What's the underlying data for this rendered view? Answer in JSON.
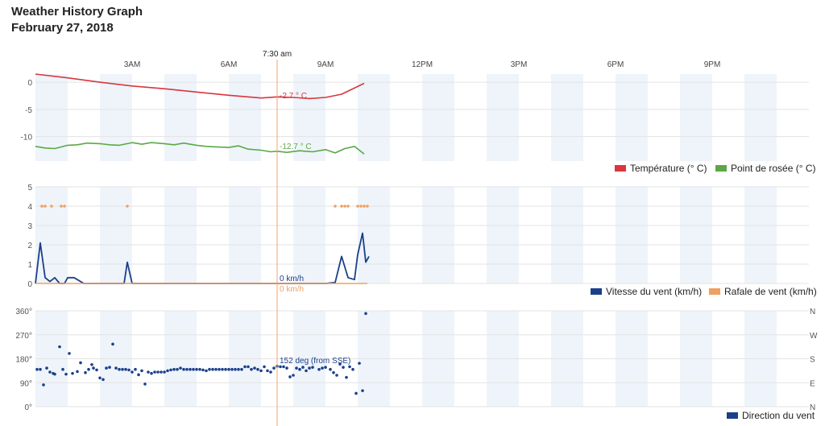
{
  "title": "Weather History Graph",
  "date": "February 27, 2018",
  "cursor": {
    "time_label": "7:30 am",
    "temp_label": "-2.7 ° C",
    "dew_label": "-12.7 ° C",
    "wind_label": "0 km/h",
    "gust_label": "0 km/h",
    "dir_label": "152 deg (from SSE)",
    "time_hours": 7.5
  },
  "colors": {
    "temperature": "#d9363e",
    "dew_point": "#5ba846",
    "wind": "#1b3f8b",
    "gust": "#f0a060",
    "direction": "#1b3f8b",
    "band": "#eef4fa",
    "cursor": "#f5a46a"
  },
  "chart_data": [
    {
      "type": "line",
      "x_unit": "hour of day",
      "xlim": [
        0,
        24
      ],
      "x_ticks": [
        {
          "h": 3,
          "label": "3AM"
        },
        {
          "h": 6,
          "label": "6AM"
        },
        {
          "h": 9,
          "label": "9AM"
        },
        {
          "h": 12,
          "label": "12PM"
        },
        {
          "h": 15,
          "label": "3PM"
        },
        {
          "h": 18,
          "label": "6PM"
        },
        {
          "h": 21,
          "label": "9PM"
        }
      ],
      "ylim": [
        -14.5,
        1.5
      ],
      "y_ticks": [
        0,
        -5,
        -10
      ],
      "series": [
        {
          "name": "Température (° C)",
          "x": [
            0,
            1,
            2,
            3,
            4,
            5,
            6,
            7,
            7.5,
            8,
            8.5,
            9,
            9.5,
            10.2
          ],
          "values": [
            1.5,
            0.8,
            0.0,
            -0.7,
            -1.2,
            -1.8,
            -2.4,
            -2.9,
            -2.7,
            -2.8,
            -3.0,
            -2.8,
            -2.2,
            -0.2
          ]
        },
        {
          "name": "Point de rosée (° C)",
          "x": [
            0,
            0.3,
            0.6,
            1,
            1.3,
            1.6,
            2,
            2.3,
            2.6,
            3,
            3.3,
            3.6,
            4,
            4.3,
            4.6,
            5,
            5.3,
            5.6,
            6,
            6.3,
            6.6,
            7,
            7.3,
            7.5,
            7.8,
            8.2,
            8.6,
            9,
            9.3,
            9.6,
            9.9,
            10.2
          ],
          "values": [
            -11.8,
            -12.1,
            -12.2,
            -11.6,
            -11.5,
            -11.2,
            -11.3,
            -11.5,
            -11.6,
            -11.1,
            -11.4,
            -11.1,
            -11.3,
            -11.5,
            -11.2,
            -11.6,
            -11.8,
            -11.9,
            -12.0,
            -11.7,
            -12.3,
            -12.5,
            -12.8,
            -12.7,
            -12.9,
            -12.6,
            -12.8,
            -12.4,
            -13.0,
            -12.2,
            -11.8,
            -13.2
          ]
        }
      ]
    },
    {
      "type": "line",
      "x_unit": "hour of day",
      "xlim": [
        0,
        24
      ],
      "ylim": [
        0,
        5
      ],
      "y_ticks": [
        0,
        1,
        2,
        3,
        4,
        5
      ],
      "series": [
        {
          "name": "Vitesse du vent (km/h)",
          "x": [
            0,
            0.15,
            0.3,
            0.45,
            0.6,
            0.75,
            0.9,
            1.0,
            1.2,
            1.5,
            2.0,
            2.5,
            2.75,
            2.85,
            3.0,
            3.5,
            9.0,
            9.3,
            9.5,
            9.7,
            9.9,
            10.0,
            10.15,
            10.25,
            10.35
          ],
          "values": [
            0,
            2.1,
            0.3,
            0.1,
            0.3,
            0,
            0,
            0.3,
            0.3,
            0,
            0,
            0,
            0,
            1.1,
            0,
            0,
            0,
            0.05,
            1.4,
            0.3,
            0.2,
            1.5,
            2.6,
            1.1,
            1.4
          ]
        },
        {
          "name": "Rafale de vent (km/h)",
          "x": [
            0,
            0.5,
            1,
            1.5,
            2,
            2.5,
            3,
            3.5,
            4,
            4.5,
            5,
            5.5,
            6,
            6.5,
            7,
            7.5,
            8,
            8.5,
            9,
            9.5,
            10,
            10.3
          ],
          "values": [
            0,
            0,
            0,
            0,
            0,
            0,
            0,
            0,
            0,
            0,
            0,
            0,
            0,
            0,
            0,
            0,
            0,
            0,
            0,
            0,
            0,
            0
          ],
          "points_x": [
            0.2,
            0.3,
            0.5,
            0.8,
            0.9,
            2.85,
            9.3,
            9.5,
            9.6,
            9.7,
            10.0,
            10.1,
            10.2,
            10.3
          ],
          "points_values": [
            4,
            4,
            4,
            4,
            4,
            4,
            4,
            4,
            4,
            4,
            4,
            4,
            4,
            4
          ]
        }
      ]
    },
    {
      "type": "scatter",
      "x_unit": "hour of day",
      "xlim": [
        0,
        24
      ],
      "ylim": [
        0,
        360
      ],
      "y_ticks": [
        {
          "v": 0,
          "label": "0°",
          "compass": "N"
        },
        {
          "v": 90,
          "label": "90°",
          "compass": "E"
        },
        {
          "v": 180,
          "label": "180°",
          "compass": "S"
        },
        {
          "v": 270,
          "label": "270°",
          "compass": "W"
        },
        {
          "v": 360,
          "label": "360°",
          "compass": "N"
        }
      ],
      "series": [
        {
          "name": "Direction du vent",
          "x": [
            0.05,
            0.15,
            0.25,
            0.35,
            0.45,
            0.55,
            0.6,
            0.75,
            0.85,
            0.95,
            1.05,
            1.15,
            1.3,
            1.4,
            1.55,
            1.65,
            1.75,
            1.8,
            1.9,
            2.0,
            2.1,
            2.2,
            2.3,
            2.4,
            2.5,
            2.6,
            2.7,
            2.8,
            2.9,
            3.0,
            3.1,
            3.2,
            3.3,
            3.4,
            3.5,
            3.6,
            3.7,
            3.8,
            3.9,
            4.0,
            4.1,
            4.2,
            4.3,
            4.4,
            4.5,
            4.6,
            4.7,
            4.8,
            4.9,
            5.0,
            5.1,
            5.2,
            5.3,
            5.4,
            5.5,
            5.6,
            5.7,
            5.8,
            5.9,
            6.0,
            6.1,
            6.2,
            6.3,
            6.4,
            6.5,
            6.6,
            6.7,
            6.8,
            6.9,
            7.0,
            7.1,
            7.2,
            7.3,
            7.4,
            7.5,
            7.6,
            7.7,
            7.8,
            7.9,
            8.0,
            8.1,
            8.2,
            8.3,
            8.4,
            8.5,
            8.6,
            8.8,
            8.9,
            9.0,
            9.15,
            9.25,
            9.35,
            9.45,
            9.55,
            9.65,
            9.75,
            9.85,
            9.95,
            10.05,
            10.15,
            10.25
          ],
          "values": [
            140,
            140,
            82,
            145,
            130,
            125,
            122,
            225,
            140,
            122,
            200,
            125,
            132,
            165,
            128,
            140,
            158,
            145,
            138,
            108,
            102,
            145,
            148,
            235,
            145,
            140,
            140,
            140,
            138,
            130,
            140,
            120,
            135,
            85,
            130,
            125,
            130,
            130,
            130,
            130,
            135,
            138,
            140,
            140,
            145,
            140,
            140,
            140,
            140,
            140,
            140,
            138,
            135,
            140,
            140,
            140,
            140,
            140,
            140,
            140,
            140,
            140,
            140,
            140,
            150,
            150,
            140,
            145,
            140,
            135,
            150,
            135,
            130,
            145,
            152,
            150,
            150,
            145,
            112,
            118,
            145,
            140,
            148,
            135,
            145,
            148,
            140,
            145,
            148,
            140,
            128,
            118,
            160,
            148,
            110,
            150,
            140,
            50,
            163,
            60,
            350
          ]
        }
      ]
    }
  ],
  "legend": {
    "temperature": "Température (° C)",
    "dew_point": "Point de rosée (° C)",
    "wind": "Vitesse du vent (km/h)",
    "gust": "Rafale de vent (km/h)",
    "direction": "Direction du vent"
  }
}
